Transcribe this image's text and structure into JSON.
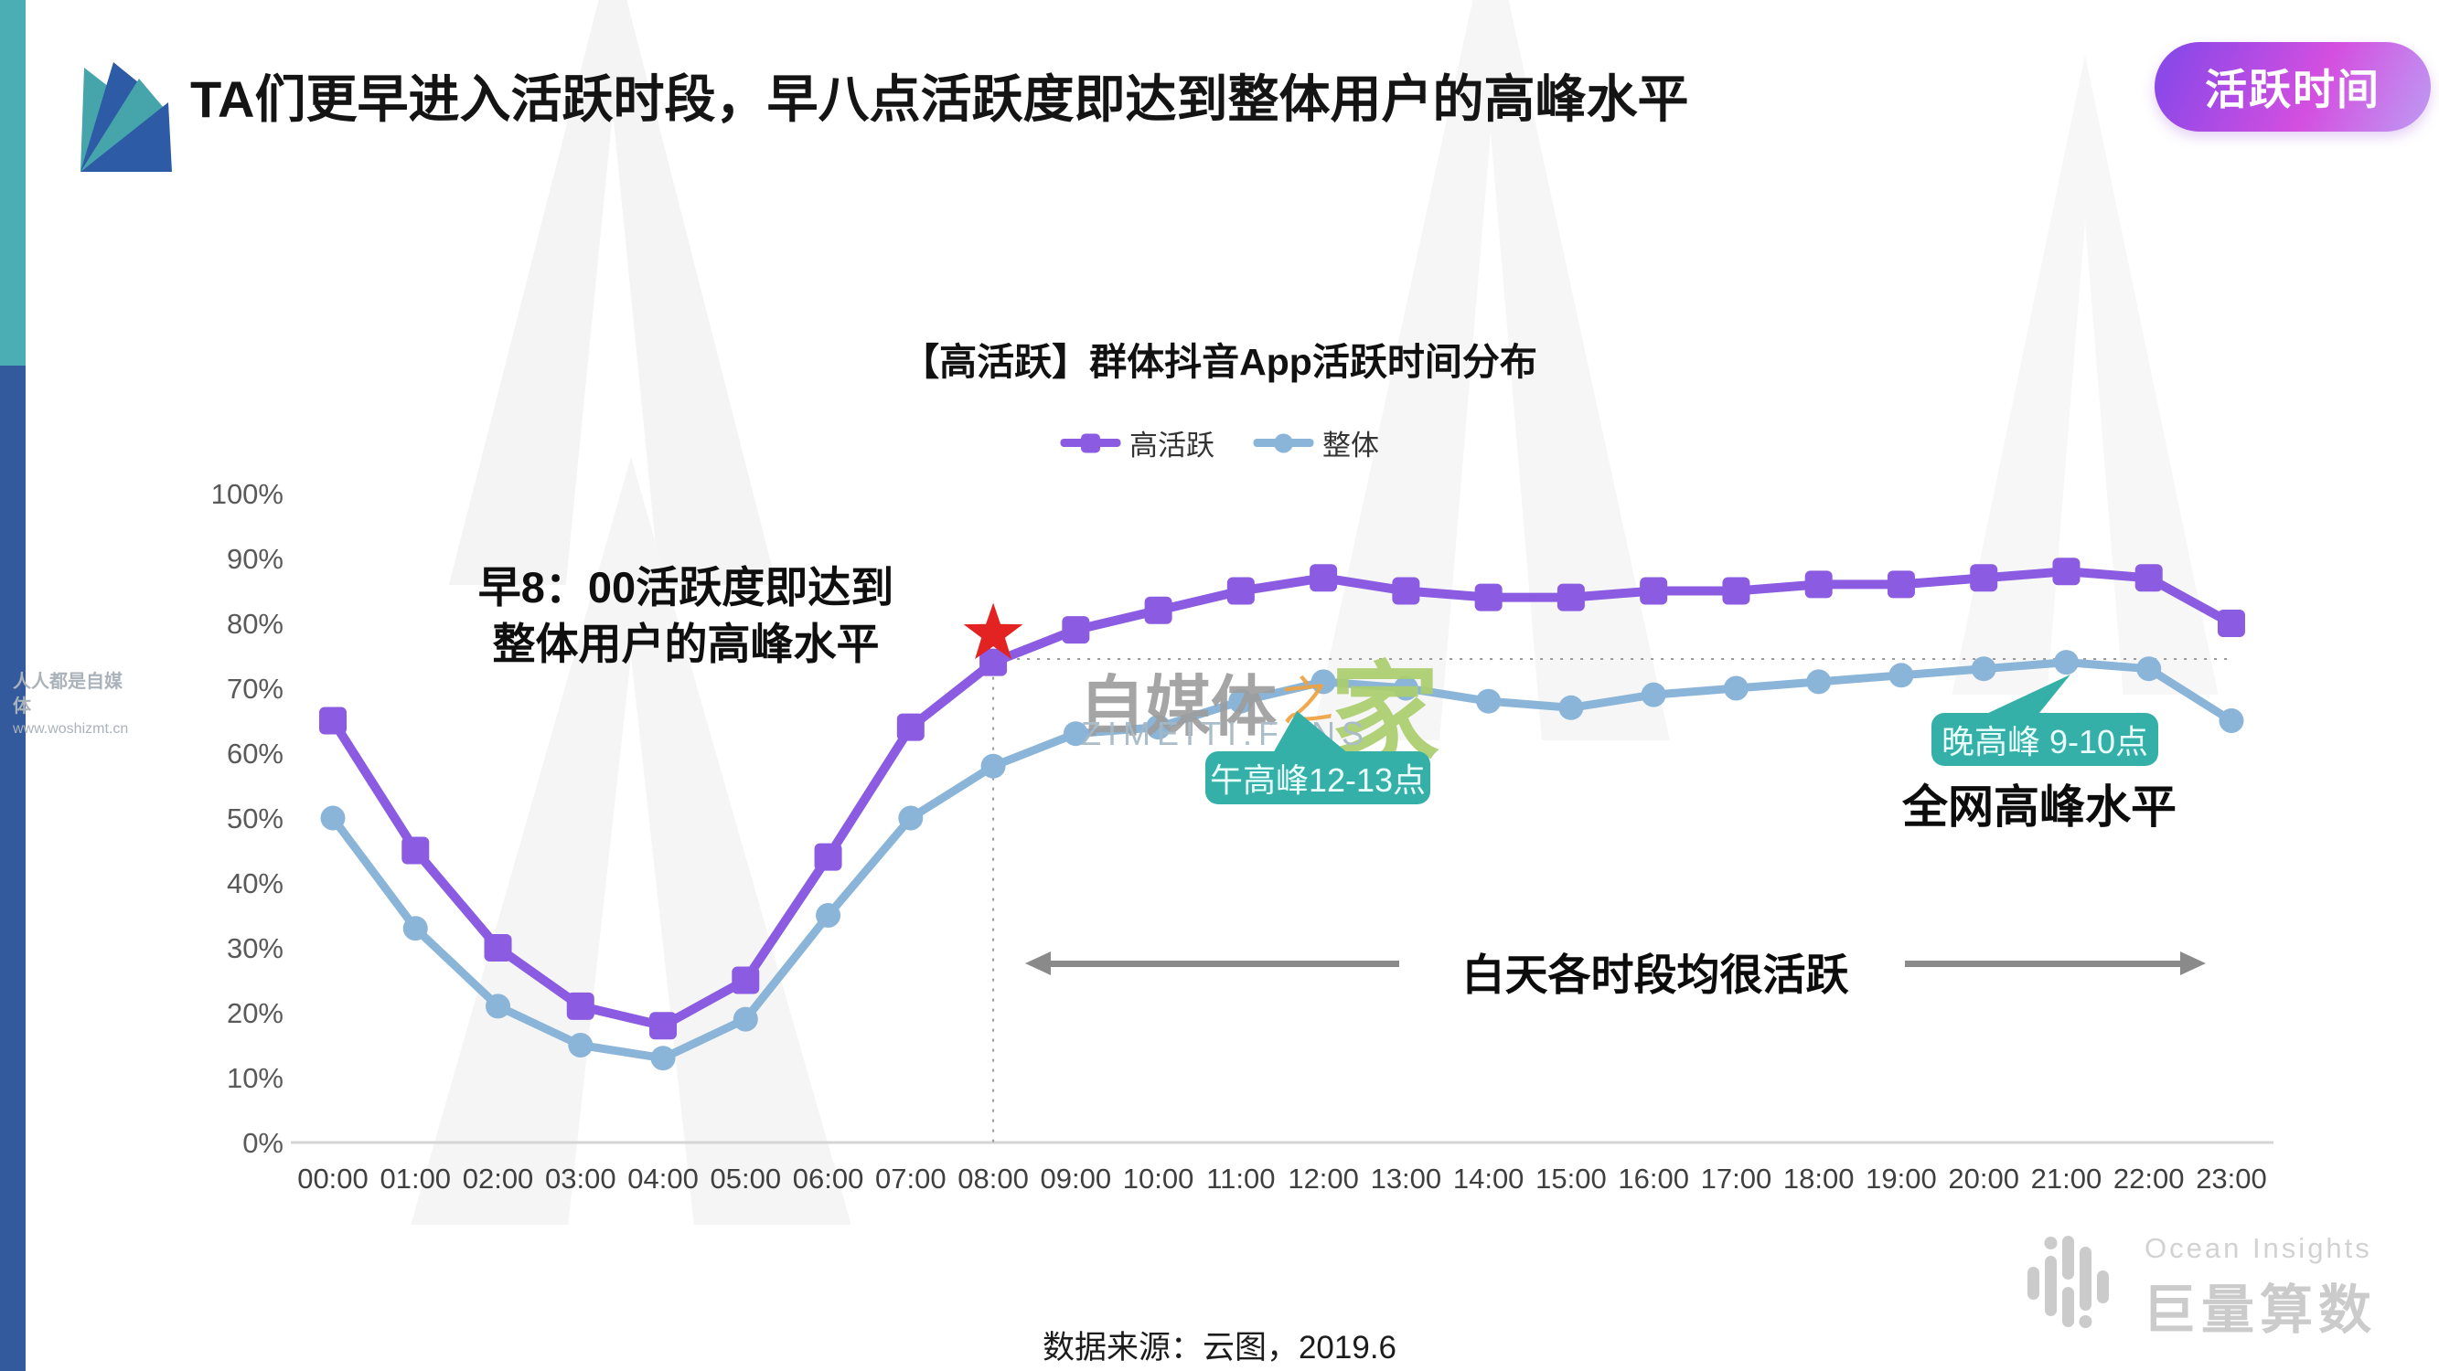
{
  "header": {
    "title": "TA们更早进入活跃时段，早八点活跃度即达到整体用户的高峰水平",
    "badge": "活跃时间"
  },
  "sidebar": {
    "caption_line1": "人人都是自媒体",
    "caption_line2": "www.woshizmt.cn"
  },
  "annotations": {
    "early_morning_line1": "早8：00活跃度即达到",
    "early_morning_line2": "整体用户的高峰水平",
    "noon_peak": "午高峰12-13点",
    "evening_peak": "晚高峰 9-10点",
    "network_peak_level": "全网高峰水平",
    "daytime_active": "白天各时段均很活跃"
  },
  "watermark": {
    "gray": "自媒体",
    "orange": "之",
    "green": "家",
    "caption": "ZIMEITI.FANS"
  },
  "footer": {
    "source": "数据来源：云图，2019.6",
    "brand_en": "Ocean Insights",
    "brand_cn": "巨量算数"
  },
  "colors": {
    "series_high_active": "#8b5ce1",
    "series_overall": "#8ab5d8",
    "callout_teal": "#35b0a8",
    "star_red": "#e32222",
    "badge_gradient_start": "#8d48e8",
    "badge_gradient_end": "#d44fe0",
    "strip_teal": "#4aaeb4",
    "strip_blue": "#325a9c"
  },
  "chart_data": {
    "type": "line",
    "title": "【高活跃】群体抖音App活跃时间分布",
    "x": [
      "00:00",
      "01:00",
      "02:00",
      "03:00",
      "04:00",
      "05:00",
      "06:00",
      "07:00",
      "08:00",
      "09:00",
      "10:00",
      "11:00",
      "12:00",
      "13:00",
      "14:00",
      "15:00",
      "16:00",
      "17:00",
      "18:00",
      "19:00",
      "20:00",
      "21:00",
      "22:00",
      "23:00"
    ],
    "series": [
      {
        "name": "高活跃",
        "color": "#8b5ce1",
        "marker": "square",
        "values": [
          65,
          45,
          30,
          21,
          18,
          25,
          44,
          64,
          74,
          79,
          82,
          85,
          87,
          85,
          84,
          84,
          85,
          85,
          86,
          86,
          87,
          88,
          87,
          80
        ]
      },
      {
        "name": "整体",
        "color": "#8ab5d8",
        "marker": "circle",
        "values": [
          50,
          33,
          21,
          15,
          13,
          19,
          35,
          50,
          58,
          63,
          64,
          68,
          71,
          70,
          68,
          67,
          69,
          70,
          71,
          72,
          73,
          74,
          73,
          65
        ]
      }
    ],
    "ylim": [
      0,
      100
    ],
    "ytick_step": 10,
    "ytick_format": "percent",
    "xlabel": "",
    "ylabel": "",
    "grid": false,
    "legend_position": "top",
    "annotations": {
      "star": {
        "x": "08:00",
        "value": 74
      },
      "dashed_vertical_x": "08:00",
      "dashed_horizontal_value": 74.5
    }
  }
}
